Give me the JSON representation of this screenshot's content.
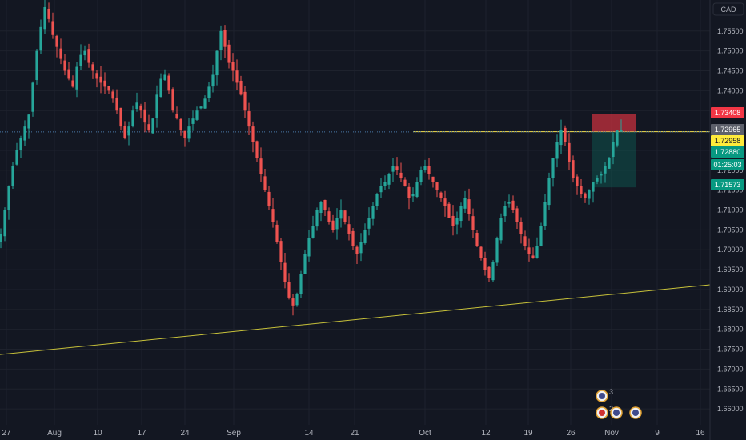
{
  "currency_label": "CAD",
  "chart_data": {
    "type": "candlestick",
    "y_range": [
      1.656,
      1.762
    ],
    "y_ticks": [
      1.755,
      1.75,
      1.745,
      1.74,
      1.735,
      1.725,
      1.72,
      1.715,
      1.71,
      1.705,
      1.7,
      1.695,
      1.69,
      1.685,
      1.68,
      1.675,
      1.67,
      1.665,
      1.66
    ],
    "y_tick_labels": [
      "1.75500",
      "1.75000",
      "1.74500",
      "1.74000",
      "1.73500",
      "1.72500",
      "1.72000",
      "1.71500",
      "1.71000",
      "1.70500",
      "1.70000",
      "1.69500",
      "1.69000",
      "1.68500",
      "1.68000",
      "1.67500",
      "1.67000",
      "1.66500",
      "1.66000"
    ],
    "x_labels": [
      "27",
      "Aug",
      "10",
      "17",
      "24",
      "Sep",
      "14",
      "21",
      "Oct",
      "12",
      "19",
      "26",
      "Nov",
      "9",
      "16"
    ],
    "up_color": "#26a69a",
    "down_color": "#ef5350",
    "closes": [
      1.704,
      1.71,
      1.716,
      1.721,
      1.725,
      1.728,
      1.731,
      1.734,
      1.742,
      1.75,
      1.756,
      1.761,
      1.758,
      1.754,
      1.751,
      1.748,
      1.745,
      1.743,
      1.741,
      1.746,
      1.749,
      1.75,
      1.747,
      1.745,
      1.743,
      1.742,
      1.741,
      1.74,
      1.738,
      1.735,
      1.731,
      1.728,
      1.731,
      1.735,
      1.737,
      1.735,
      1.732,
      1.73,
      1.733,
      1.739,
      1.743,
      1.744,
      1.74,
      1.735,
      1.733,
      1.73,
      1.728,
      1.731,
      1.733,
      1.735,
      1.736,
      1.738,
      1.741,
      1.744,
      1.75,
      1.755,
      1.751,
      1.747,
      1.745,
      1.742,
      1.739,
      1.735,
      1.731,
      1.727,
      1.723,
      1.719,
      1.715,
      1.711,
      1.707,
      1.702,
      1.697,
      1.692,
      1.688,
      1.686,
      1.689,
      1.694,
      1.699,
      1.703,
      1.706,
      1.71,
      1.712,
      1.71,
      1.707,
      1.705,
      1.708,
      1.71,
      1.707,
      1.704,
      1.701,
      1.699,
      1.702,
      1.705,
      1.708,
      1.711,
      1.714,
      1.716,
      1.717,
      1.719,
      1.721,
      1.72,
      1.718,
      1.716,
      1.713,
      1.714,
      1.717,
      1.72,
      1.721,
      1.719,
      1.717,
      1.715,
      1.713,
      1.711,
      1.708,
      1.706,
      1.708,
      1.711,
      1.713,
      1.709,
      1.705,
      1.701,
      1.698,
      1.695,
      1.693,
      1.697,
      1.703,
      1.708,
      1.711,
      1.712,
      1.71,
      1.707,
      1.704,
      1.701,
      1.699,
      1.698,
      1.701,
      1.706,
      1.712,
      1.718,
      1.723,
      1.727,
      1.73,
      1.727,
      1.722,
      1.718,
      1.716,
      1.714,
      1.713,
      1.715,
      1.717,
      1.718,
      1.719,
      1.721,
      1.723,
      1.727,
      1.73,
      1.73
    ],
    "hlines": [
      {
        "label": "1.73408",
        "value": 1.73408,
        "color": "#f23645"
      },
      {
        "label": "1.72965",
        "value": 1.72965,
        "color": "#5d606b"
      },
      {
        "label": "1.72958",
        "value": 1.72958,
        "color": "#ffeb3b"
      },
      {
        "label": "1.72880",
        "value": 1.7288,
        "color": "#089981"
      },
      {
        "label": "01:25:03",
        "value": 1.7265,
        "color": "#089981"
      },
      {
        "label": "1.71573",
        "value": 1.71573,
        "color": "#089981"
      }
    ],
    "resistance": {
      "value": 1.7297,
      "from_index": 103,
      "to_index": 165,
      "color": "#f4e04d"
    },
    "trendline": {
      "from": [
        -2,
        1.6735
      ],
      "to": [
        178,
        1.6912
      ],
      "color": "#c8c23a"
    },
    "position": {
      "entry": 1.7297,
      "stop": 1.7342,
      "target": 1.7157,
      "from_index": 148,
      "to_index": 156
    }
  },
  "events": [
    {
      "label": "3",
      "kind": "flag-gb"
    },
    {
      "label": "2",
      "kind": "flag-ca"
    },
    {
      "label": "",
      "kind": "flag-gb-2"
    }
  ]
}
